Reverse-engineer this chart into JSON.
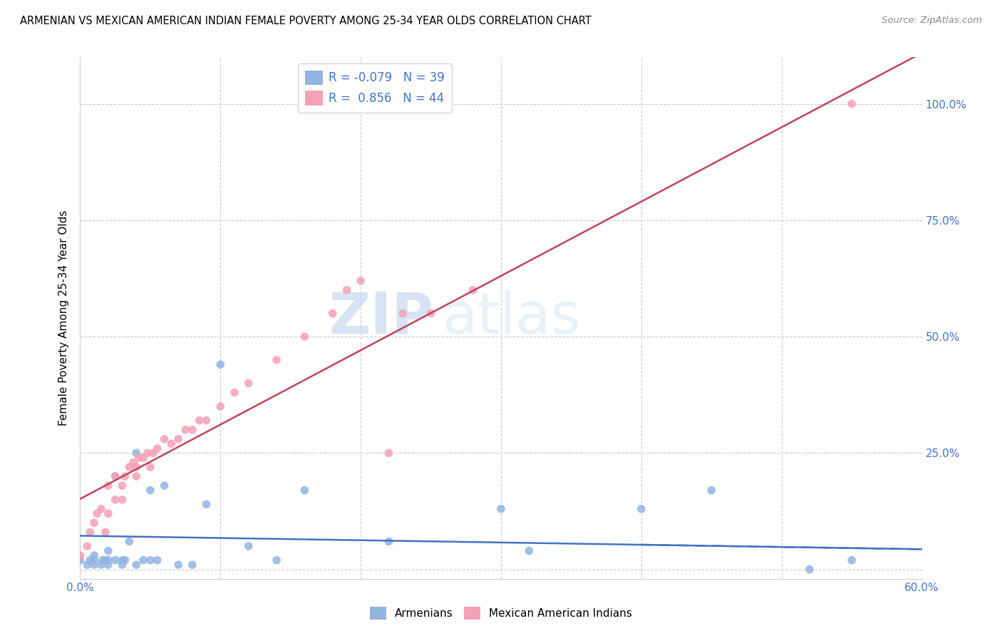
{
  "title": "ARMENIAN VS MEXICAN AMERICAN INDIAN FEMALE POVERTY AMONG 25-34 YEAR OLDS CORRELATION CHART",
  "source": "Source: ZipAtlas.com",
  "ylabel": "Female Poverty Among 25-34 Year Olds",
  "xlim": [
    0.0,
    0.6
  ],
  "ylim": [
    -0.02,
    1.1
  ],
  "xticks": [
    0.0,
    0.1,
    0.2,
    0.3,
    0.4,
    0.5,
    0.6
  ],
  "xticklabels": [
    "0.0%",
    "",
    "",
    "",
    "",
    "",
    "60.0%"
  ],
  "yticks": [
    0.0,
    0.25,
    0.5,
    0.75,
    1.0
  ],
  "right_yticklabels": [
    "",
    "25.0%",
    "50.0%",
    "75.0%",
    "100.0%"
  ],
  "armenians_R": -0.079,
  "armenians_N": 39,
  "mexican_R": 0.856,
  "mexican_N": 44,
  "armenians_color": "#92b4e3",
  "mexican_color": "#f4a0b5",
  "armenians_line_color": "#4472c4",
  "mexican_line_color": "#c0445a",
  "legend_label1": "Armenians",
  "legend_label2": "Mexican American Indians",
  "watermark_zip": "ZIP",
  "watermark_atlas": "atlas",
  "armenians_x": [
    0.0,
    0.005,
    0.007,
    0.01,
    0.01,
    0.01,
    0.015,
    0.016,
    0.018,
    0.02,
    0.02,
    0.02,
    0.025,
    0.025,
    0.03,
    0.03,
    0.032,
    0.035,
    0.04,
    0.04,
    0.045,
    0.05,
    0.05,
    0.055,
    0.06,
    0.07,
    0.08,
    0.09,
    0.1,
    0.12,
    0.14,
    0.16,
    0.22,
    0.3,
    0.32,
    0.4,
    0.45,
    0.52,
    0.55
  ],
  "armenians_y": [
    0.02,
    0.01,
    0.02,
    0.01,
    0.02,
    0.03,
    0.01,
    0.02,
    0.02,
    0.01,
    0.02,
    0.04,
    0.02,
    0.2,
    0.01,
    0.02,
    0.02,
    0.06,
    0.01,
    0.25,
    0.02,
    0.02,
    0.17,
    0.02,
    0.18,
    0.01,
    0.01,
    0.14,
    0.44,
    0.05,
    0.02,
    0.17,
    0.06,
    0.13,
    0.04,
    0.13,
    0.17,
    0.0,
    0.02
  ],
  "mexican_x": [
    0.0,
    0.005,
    0.007,
    0.01,
    0.012,
    0.015,
    0.018,
    0.02,
    0.02,
    0.025,
    0.025,
    0.03,
    0.03,
    0.032,
    0.035,
    0.038,
    0.04,
    0.04,
    0.042,
    0.045,
    0.048,
    0.05,
    0.052,
    0.055,
    0.06,
    0.065,
    0.07,
    0.075,
    0.08,
    0.085,
    0.09,
    0.1,
    0.11,
    0.12,
    0.14,
    0.16,
    0.18,
    0.19,
    0.2,
    0.22,
    0.23,
    0.25,
    0.28,
    0.55
  ],
  "mexican_y": [
    0.03,
    0.05,
    0.08,
    0.1,
    0.12,
    0.13,
    0.08,
    0.12,
    0.18,
    0.15,
    0.2,
    0.15,
    0.18,
    0.2,
    0.22,
    0.23,
    0.2,
    0.22,
    0.24,
    0.24,
    0.25,
    0.22,
    0.25,
    0.26,
    0.28,
    0.27,
    0.28,
    0.3,
    0.3,
    0.32,
    0.32,
    0.35,
    0.38,
    0.4,
    0.45,
    0.5,
    0.55,
    0.6,
    0.62,
    0.25,
    0.55,
    0.55,
    0.6,
    1.0
  ]
}
